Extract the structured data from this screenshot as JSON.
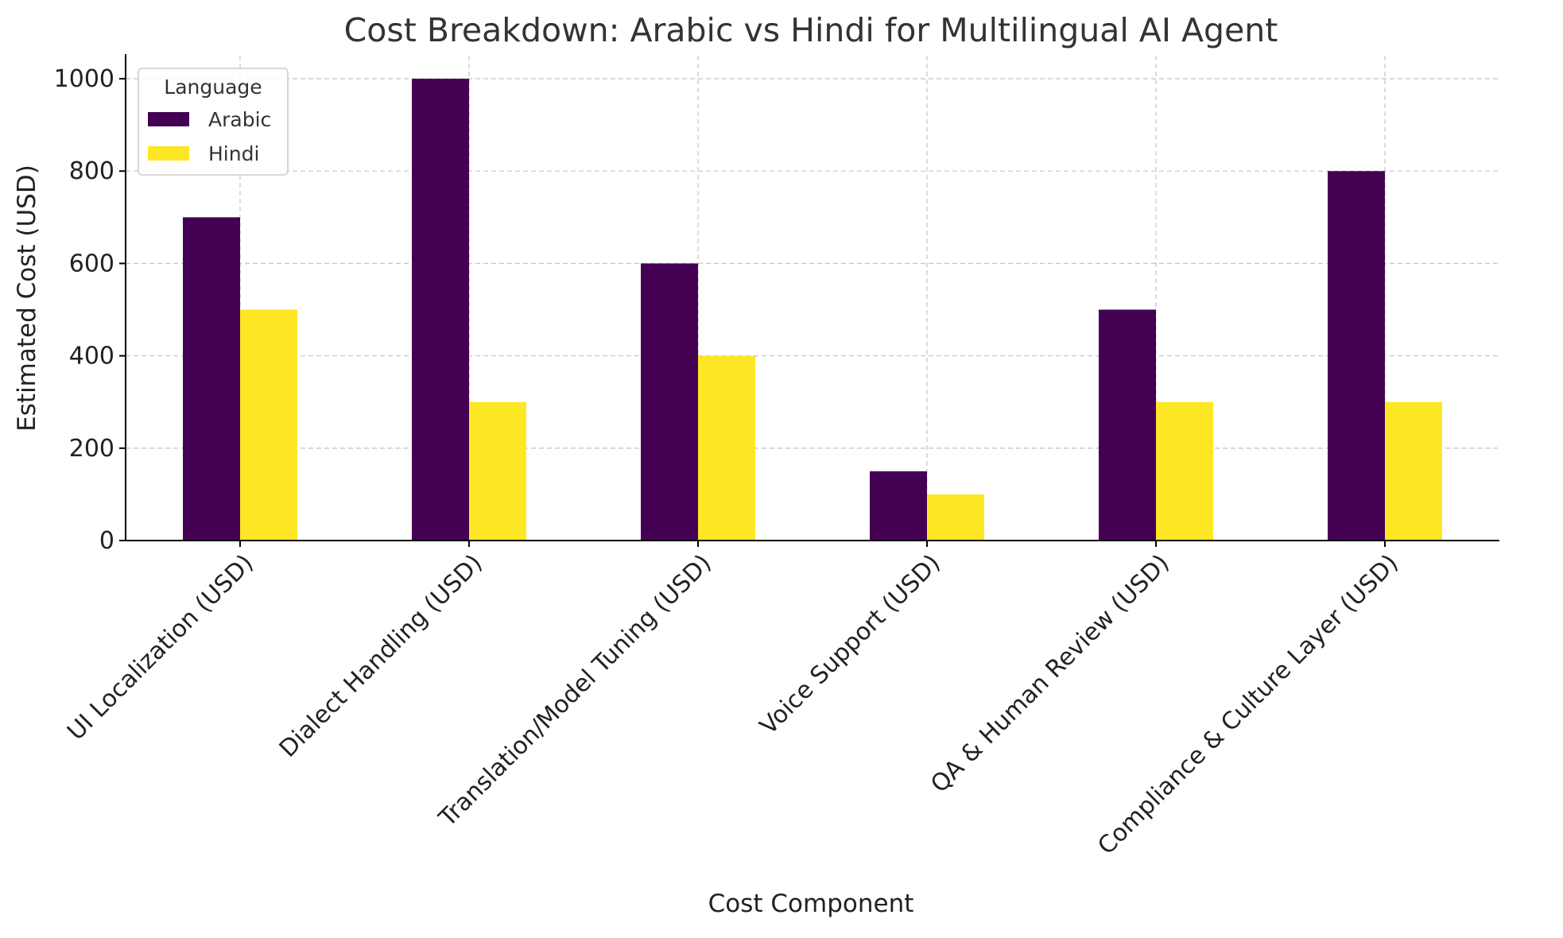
{
  "chart_data": {
    "type": "bar",
    "title": "Cost Breakdown: Arabic vs Hindi for Multilingual AI Agent",
    "xlabel": "Cost Component",
    "ylabel": "Estimated Cost (USD)",
    "categories": [
      "UI Localization (USD)",
      "Dialect Handling (USD)",
      "Translation/Model Tuning (USD)",
      "Voice Support (USD)",
      "QA & Human Review (USD)",
      "Compliance & Culture Layer (USD)"
    ],
    "series": [
      {
        "name": "Arabic",
        "color": "#440154",
        "values": [
          700,
          1000,
          600,
          150,
          500,
          800
        ]
      },
      {
        "name": "Hindi",
        "color": "#fde725",
        "values": [
          500,
          300,
          400,
          100,
          300,
          300
        ]
      }
    ],
    "ylim": [
      0,
      1050
    ],
    "yticks": [
      0,
      200,
      400,
      600,
      800,
      1000
    ],
    "grid": true,
    "legend": {
      "title": "Language",
      "placement": "top-left"
    }
  }
}
